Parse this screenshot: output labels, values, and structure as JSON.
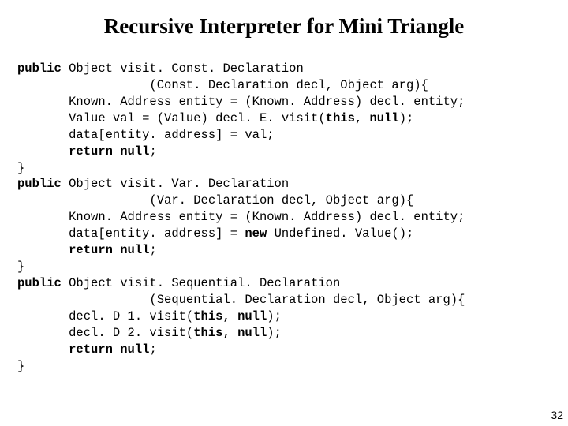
{
  "title": "Recursive Interpreter for Mini Triangle",
  "page_number": "32",
  "code": {
    "l01a": "public",
    "l01b": " Object visit. Const. Declaration",
    "l02": "                  (Const. Declaration decl, Object arg){",
    "l03": "       Known. Address entity = (Known. Address) decl. entity;",
    "l04a": "       Value val = (Value) decl. E. visit(",
    "l04b": "this",
    "l04c": ", ",
    "l04d": "null",
    "l04e": ");",
    "l05": "       data[entity. address] = val;",
    "l06a": "       ",
    "l06b": "return null",
    "l06c": ";",
    "l07": "}",
    "l08a": "public",
    "l08b": " Object visit. Var. Declaration",
    "l09": "                  (Var. Declaration decl, Object arg){",
    "l10": "       Known. Address entity = (Known. Address) decl. entity;",
    "l11a": "       data[entity. address] = ",
    "l11b": "new",
    "l11c": " Undefined. Value();",
    "l12a": "       ",
    "l12b": "return null",
    "l12c": ";",
    "l13": "}",
    "l14a": "public",
    "l14b": " Object visit. Sequential. Declaration",
    "l15": "                  (Sequential. Declaration decl, Object arg){",
    "l16a": "       decl. D 1. visit(",
    "l16b": "this",
    "l16c": ", ",
    "l16d": "null",
    "l16e": ");",
    "l17a": "       decl. D 2. visit(",
    "l17b": "this",
    "l17c": ", ",
    "l17d": "null",
    "l17e": ");",
    "l18a": "       ",
    "l18b": "return null",
    "l18c": ";",
    "l19": "}"
  }
}
